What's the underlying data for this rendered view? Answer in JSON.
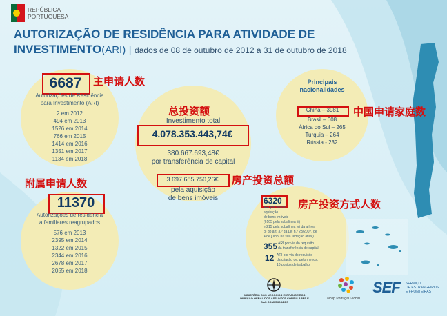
{
  "header": {
    "brand_line1": "REPÚBLICA",
    "brand_line2": "PORTUGUESA",
    "title_line1": "AUTORIZAÇÃO DE RESIDÊNCIA PARA ATIVIDADE DE",
    "title_line2_bold": "INVESTIMENTO",
    "title_line2_abbr": "(ARI)",
    "title_line2_sep": "|",
    "title_line2_dates": "dados de 08 de outubro de 2012 a 31 de outubro de 2018"
  },
  "ari_main": {
    "number": "6687",
    "annotation": "主申请人数",
    "label_l1": "Autorizações de Residência",
    "label_l2": "para Investimento (ARI)",
    "years": [
      "2 em 2012",
      "494 em 2013",
      "1526 em 2014",
      "766 em 2015",
      "1414 em 2016",
      "1351 em 2017",
      "1134 em 2018"
    ]
  },
  "family": {
    "annotation": "附属申请人数",
    "number": "11370",
    "label_l1": "Autorizações de residência",
    "label_l2": "a familiares reagrupados",
    "years": [
      "576 em 2013",
      "2395 em 2014",
      "1322 em 2015",
      "2344 em 2016",
      "2678 em 2017",
      "2055 em 2018"
    ]
  },
  "investment": {
    "annotation_total": "总投资额",
    "label_total": "Investimento total",
    "total": "4.078.353.443,74€",
    "transfer_amount": "380.667.693,48€",
    "transfer_label": "por transferência de capital",
    "property_amount": "3.697.685.750,26€",
    "annotation_property": "房产投资总额",
    "property_label_l1": "pela aquisição",
    "property_label_l2": "de bens imóveis"
  },
  "nationalities": {
    "title_l1": "Principais",
    "title_l2": "nacionalidades",
    "highlight": "China – 3981",
    "annotation": "中国申请家庭数",
    "others": [
      "Brasil – 608",
      "África do Sul – 265",
      "Turquia – 264",
      "Rússia - 232"
    ]
  },
  "methods": {
    "number": "6320",
    "annotation": "房产投资方式人数",
    "label_lines": [
      "ARI por via da",
      "aquisição",
      "de bens imóveis",
      "(6105 pela subalínea iii)",
      "e 215 pela subalínea iv) da alínea",
      "d) do art. 3.º da Lei n.º 23/2007, de",
      "4 de julho, na sua redação atual)"
    ],
    "n2": "355",
    "n2_label_l1": "ARI por via do requisito",
    "n2_label_l2": "da transferência de capital",
    "n3": "12",
    "n3_label_lines": [
      "ARI por via do requisito",
      "da criação de, pelo menos,",
      "10 postos de trabalho"
    ]
  },
  "footer": {
    "mne_l1": "MINISTÉRIO DOS NEGÓCIOS ESTRANGEIROS",
    "mne_l2": "DIREÇÃO-GERAL DOS ASSUNTOS CONSULARES E",
    "mne_l3": "DAS COMUNIDADES",
    "aicep": "aicep Portugal Global",
    "sef_logo": "SEF",
    "sef_l1": "SERVIÇO",
    "sef_l2": "DE ESTRANGEIROS",
    "sef_l3": "E FRONTEIRAS"
  },
  "colors": {
    "accent_red": "#d41010",
    "title_blue": "#1f5f96",
    "bubble": "#f3ecb6"
  }
}
